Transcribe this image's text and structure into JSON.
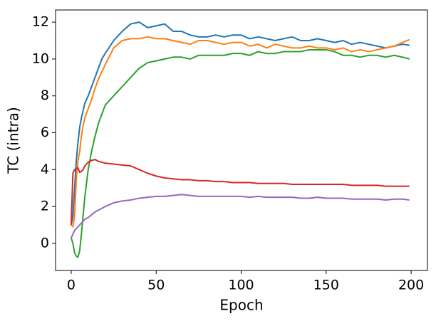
{
  "chart_data": {
    "type": "line",
    "xlabel": "Epoch",
    "ylabel": "TC (intra)",
    "x": [
      0,
      1,
      2,
      3,
      4,
      5,
      6,
      7,
      8,
      10,
      12,
      14,
      16,
      18,
      20,
      25,
      30,
      35,
      40,
      45,
      50,
      55,
      60,
      65,
      70,
      75,
      80,
      85,
      90,
      95,
      100,
      105,
      110,
      115,
      120,
      125,
      130,
      135,
      140,
      145,
      150,
      155,
      160,
      165,
      170,
      175,
      180,
      185,
      190,
      195,
      199
    ],
    "series": [
      {
        "color": "#1f77b4",
        "values": [
          1.0,
          1.5,
          3.0,
          4.5,
          5.5,
          6.3,
          6.8,
          7.2,
          7.6,
          8.0,
          8.5,
          9.0,
          9.5,
          10.0,
          10.3,
          11.0,
          11.5,
          11.9,
          12.0,
          11.7,
          11.8,
          11.9,
          11.5,
          11.5,
          11.3,
          11.2,
          11.2,
          11.3,
          11.2,
          11.3,
          11.3,
          11.1,
          11.2,
          11.1,
          11.0,
          11.1,
          11.2,
          11.0,
          11.0,
          11.1,
          11.0,
          10.9,
          11.0,
          10.8,
          10.9,
          10.8,
          10.7,
          10.6,
          10.7,
          10.8,
          10.75
        ]
      },
      {
        "color": "#ff7f0e",
        "values": [
          1.0,
          0.9,
          1.5,
          3.5,
          4.5,
          5.0,
          5.8,
          6.4,
          6.8,
          7.3,
          7.8,
          8.4,
          8.9,
          9.3,
          9.7,
          10.6,
          11.0,
          11.1,
          11.1,
          11.2,
          11.1,
          11.1,
          11.0,
          10.9,
          10.8,
          11.0,
          11.0,
          10.9,
          10.8,
          10.9,
          10.9,
          10.7,
          10.8,
          10.6,
          10.8,
          10.7,
          10.6,
          10.6,
          10.7,
          10.6,
          10.6,
          10.5,
          10.6,
          10.4,
          10.5,
          10.4,
          10.5,
          10.6,
          10.7,
          10.9,
          11.05
        ]
      },
      {
        "color": "#2ca02c",
        "values": [
          0.3,
          0.0,
          -0.5,
          -0.7,
          -0.75,
          -0.4,
          0.5,
          1.5,
          2.5,
          4.0,
          5.0,
          5.8,
          6.5,
          7.0,
          7.5,
          8.0,
          8.5,
          9.0,
          9.5,
          9.8,
          9.9,
          10.0,
          10.1,
          10.1,
          10.0,
          10.2,
          10.2,
          10.2,
          10.2,
          10.3,
          10.3,
          10.2,
          10.4,
          10.3,
          10.3,
          10.4,
          10.4,
          10.4,
          10.5,
          10.5,
          10.5,
          10.4,
          10.2,
          10.2,
          10.1,
          10.2,
          10.2,
          10.1,
          10.2,
          10.1,
          10.0
        ]
      },
      {
        "color": "#d62728",
        "values": [
          1.0,
          3.8,
          4.0,
          4.05,
          4.1,
          3.85,
          3.9,
          4.0,
          4.2,
          4.4,
          4.5,
          4.55,
          4.45,
          4.4,
          4.35,
          4.3,
          4.25,
          4.2,
          4.0,
          3.8,
          3.65,
          3.55,
          3.5,
          3.45,
          3.45,
          3.4,
          3.4,
          3.35,
          3.35,
          3.3,
          3.3,
          3.3,
          3.25,
          3.25,
          3.25,
          3.25,
          3.2,
          3.2,
          3.2,
          3.2,
          3.2,
          3.2,
          3.2,
          3.15,
          3.15,
          3.15,
          3.15,
          3.1,
          3.1,
          3.1,
          3.1
        ]
      },
      {
        "color": "#9467bd",
        "values": [
          0.3,
          0.5,
          0.7,
          0.8,
          0.9,
          1.0,
          1.1,
          1.2,
          1.3,
          1.4,
          1.55,
          1.7,
          1.8,
          1.9,
          2.0,
          2.2,
          2.3,
          2.35,
          2.45,
          2.5,
          2.55,
          2.55,
          2.6,
          2.65,
          2.6,
          2.55,
          2.55,
          2.55,
          2.55,
          2.55,
          2.55,
          2.5,
          2.55,
          2.5,
          2.5,
          2.5,
          2.5,
          2.45,
          2.45,
          2.5,
          2.45,
          2.45,
          2.45,
          2.4,
          2.4,
          2.4,
          2.4,
          2.35,
          2.4,
          2.4,
          2.35
        ]
      }
    ],
    "xlim": [
      -9.2,
      209.6
    ],
    "xticks": [
      0,
      50,
      100,
      150,
      200
    ],
    "ylim": [
      -1.47,
      12.66
    ],
    "yticks": [
      0,
      2,
      4,
      6,
      8,
      10,
      12
    ],
    "grid": false
  }
}
